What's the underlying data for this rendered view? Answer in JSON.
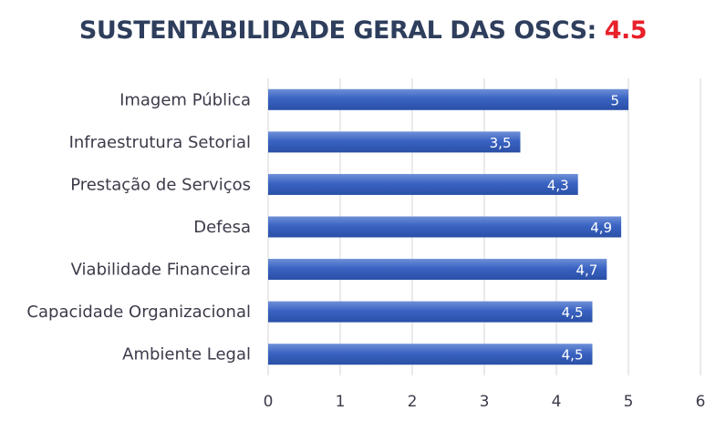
{
  "title": {
    "text": "SUSTENTABILIDADE GERAL DAS OSCS: ",
    "score": "4.5"
  },
  "colors": {
    "bar_top": "#6f90d8",
    "bar_mid": "#3a63c2",
    "bar_bottom": "#2a4fa6",
    "grid": "#d6d6d6",
    "title": "#2e3e5c",
    "score": "#e8202a"
  },
  "chart_data": {
    "type": "bar",
    "orientation": "horizontal",
    "title": "SUSTENTABILIDADE GERAL DAS OSCS: 4.5",
    "categories": [
      "Imagem Pública",
      "Infraestrutura Setorial",
      "Prestação de Serviços",
      "Defesa",
      "Viabilidade Financeira",
      "Capacidade Organizacional",
      "Ambiente Legal"
    ],
    "values": [
      5,
      3.5,
      4.3,
      4.9,
      4.7,
      4.5,
      4.5
    ],
    "data_labels": [
      "5",
      "3,5",
      "4,3",
      "4,9",
      "4,7",
      "4,5",
      "4,5"
    ],
    "xlim": [
      0,
      6
    ],
    "xticks": [
      0,
      1,
      2,
      3,
      4,
      5,
      6
    ],
    "xtick_labels": [
      "0",
      "1",
      "2",
      "3",
      "4",
      "5",
      "6"
    ],
    "grid": true,
    "xlabel": "",
    "ylabel": ""
  }
}
